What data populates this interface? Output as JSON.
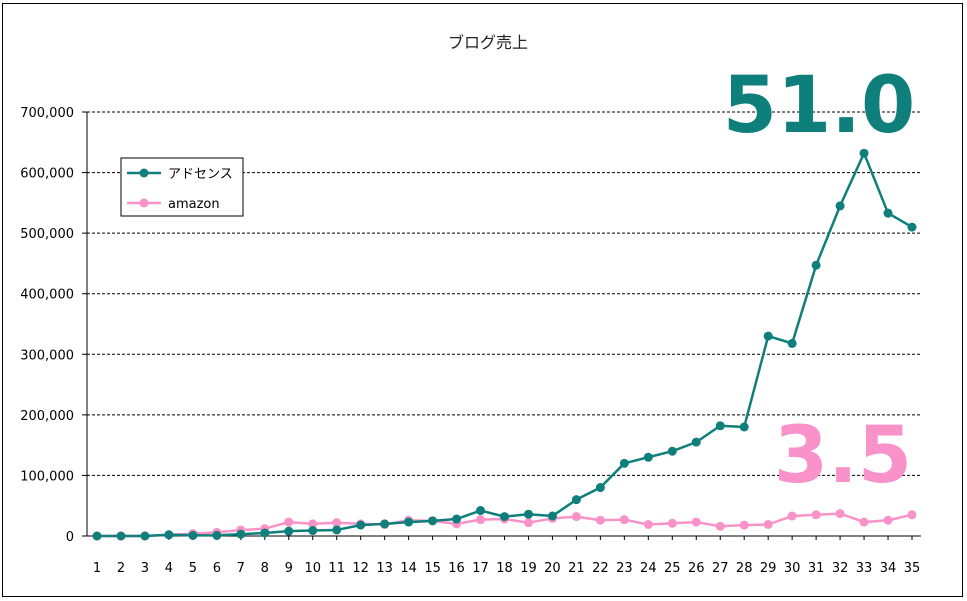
{
  "chart_data": {
    "type": "line",
    "title": "ブログ売上",
    "xlabel": "",
    "ylabel": "",
    "categories": [
      "1",
      "2",
      "3",
      "4",
      "5",
      "6",
      "7",
      "8",
      "9",
      "10",
      "11",
      "12",
      "13",
      "14",
      "15",
      "16",
      "17",
      "18",
      "19",
      "20",
      "21",
      "22",
      "23",
      "24",
      "25",
      "26",
      "27",
      "28",
      "29",
      "30",
      "31",
      "32",
      "33",
      "34",
      "35"
    ],
    "ylim": [
      0,
      700000
    ],
    "yticks": [
      0,
      100000,
      200000,
      300000,
      400000,
      500000,
      600000,
      700000
    ],
    "ytick_labels": [
      "0",
      "100,000",
      "200,000",
      "300,000",
      "400,000",
      "500,000",
      "600,000",
      "700,000"
    ],
    "grid": "horizontal dashed",
    "legend_position": "upper-left",
    "series": [
      {
        "name": "アドセンス",
        "color": "#0e7f7b",
        "marker": "circle",
        "values": [
          0,
          0,
          0,
          2000,
          1000,
          1000,
          3000,
          5000,
          8000,
          9000,
          10000,
          18000,
          20000,
          23000,
          25000,
          28000,
          42000,
          32000,
          36000,
          33000,
          60000,
          80000,
          120000,
          130000,
          140000,
          155000,
          182000,
          180000,
          330000,
          318000,
          447000,
          545000,
          632000,
          533000,
          510000
        ],
        "annotation": "51.0"
      },
      {
        "name": "amazon",
        "color": "#f992c8",
        "marker": "circle",
        "values": [
          0,
          0,
          0,
          2000,
          4000,
          6000,
          10000,
          12000,
          23000,
          20000,
          22000,
          20000,
          19000,
          26000,
          25000,
          20000,
          27000,
          28000,
          22000,
          29000,
          32000,
          26000,
          27000,
          19000,
          21000,
          23000,
          16000,
          18000,
          19000,
          33000,
          35000,
          37000,
          23000,
          26000,
          35000
        ],
        "annotation": "3.5"
      }
    ]
  }
}
